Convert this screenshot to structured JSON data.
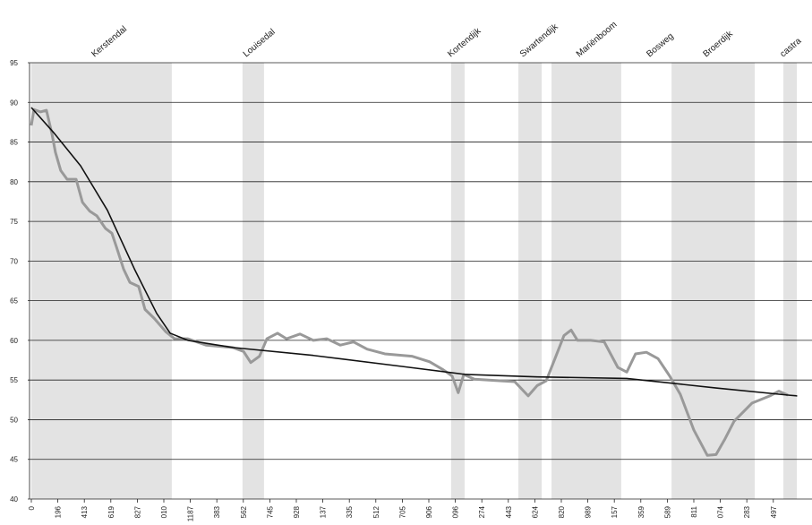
{
  "chart_data": {
    "type": "line",
    "xlim": [
      0,
      29.46
    ],
    "ylim": [
      40,
      95
    ],
    "yticks": [
      40,
      45,
      50,
      55,
      60,
      65,
      70,
      75,
      80,
      85,
      90,
      95
    ],
    "xticks": [
      {
        "value": 0,
        "label": "0"
      },
      {
        "value": 1,
        "label": "196"
      },
      {
        "value": 2,
        "label": "413"
      },
      {
        "value": 3,
        "label": "619"
      },
      {
        "value": 4,
        "label": "827"
      },
      {
        "value": 5,
        "label": "010"
      },
      {
        "value": 6,
        "label": "1187"
      },
      {
        "value": 7,
        "label": "383"
      },
      {
        "value": 8,
        "label": "562"
      },
      {
        "value": 9,
        "label": "745"
      },
      {
        "value": 10,
        "label": "928"
      },
      {
        "value": 11,
        "label": "137"
      },
      {
        "value": 12,
        "label": "335"
      },
      {
        "value": 13,
        "label": "512"
      },
      {
        "value": 14,
        "label": "705"
      },
      {
        "value": 15,
        "label": "906"
      },
      {
        "value": 16,
        "label": "096"
      },
      {
        "value": 17,
        "label": "274"
      },
      {
        "value": 18,
        "label": "443"
      },
      {
        "value": 19,
        "label": "624"
      },
      {
        "value": 20,
        "label": "820"
      },
      {
        "value": 21,
        "label": "989"
      },
      {
        "value": 22,
        "label": "157"
      },
      {
        "value": 23,
        "label": "359"
      },
      {
        "value": 24,
        "label": "589"
      },
      {
        "value": 25,
        "label": "811"
      },
      {
        "value": 26,
        "label": "074"
      },
      {
        "value": 27,
        "label": "283"
      },
      {
        "value": 28,
        "label": "497"
      }
    ],
    "zones": [
      {
        "label": "Kerstendal",
        "start": 0,
        "end": 5.3
      },
      {
        "label": "Louisedal",
        "start": 7.97,
        "end": 8.78
      },
      {
        "label": "Kortendijk",
        "start": 15.84,
        "end": 16.35
      },
      {
        "label": "Swartendijk",
        "start": 18.38,
        "end": 19.26
      },
      {
        "label": "Mariënboom",
        "start": 19.63,
        "end": 22.26
      },
      {
        "label": "Bosweg",
        "at": 23.6
      },
      {
        "label": "Broerdijk",
        "start": 24.16,
        "end": 27.3
      },
      {
        "label": "castra",
        "start": 28.38,
        "end": 28.89
      }
    ],
    "grid": true,
    "series": [
      {
        "color": "#999999",
        "x": [
          0,
          0.1,
          0.34,
          0.57,
          0.78,
          0.91,
          1.11,
          1.35,
          1.69,
          1.93,
          2.2,
          2.47,
          2.8,
          3.04,
          3.21,
          3.48,
          3.72,
          4.05,
          4.29,
          4.63,
          5.07,
          5.41,
          5.91,
          6.59,
          7.6,
          8.01,
          8.28,
          8.61,
          8.89,
          9.29,
          9.63,
          10.14,
          10.64,
          11.15,
          11.66,
          12.16,
          12.67,
          13.34,
          14.36,
          15.03,
          15.54,
          15.88,
          16.11,
          16.32,
          16.72,
          17.74,
          18.24,
          18.75,
          19.09,
          19.43,
          19.76,
          20.1,
          20.37,
          20.61,
          21.11,
          21.62,
          22.13,
          22.47,
          22.8,
          23.21,
          23.65,
          24.09,
          24.49,
          25.0,
          25.51,
          25.84,
          26.18,
          26.52,
          27.2,
          27.87,
          28.21,
          28.55
        ],
        "values": [
          87.1,
          89.1,
          88.8,
          89.0,
          86.0,
          83.7,
          81.4,
          80.3,
          80.3,
          77.4,
          76.3,
          75.7,
          74.1,
          73.5,
          71.8,
          69.0,
          67.3,
          66.8,
          63.9,
          62.8,
          61.1,
          60.2,
          60.2,
          59.4,
          59.1,
          58.6,
          57.2,
          58.0,
          60.2,
          60.9,
          60.2,
          60.8,
          60.0,
          60.2,
          59.4,
          59.8,
          58.9,
          58.3,
          58.0,
          57.3,
          56.3,
          55.5,
          53.4,
          55.7,
          55.1,
          54.9,
          54.8,
          53.0,
          54.3,
          54.9,
          57.7,
          60.6,
          61.3,
          60.0,
          60.0,
          59.8,
          56.6,
          56.0,
          58.3,
          58.5,
          57.7,
          55.5,
          53.2,
          48.7,
          45.5,
          45.6,
          47.6,
          49.8,
          52.1,
          53.0,
          53.6,
          53.1
        ]
      },
      {
        "color": "#111111",
        "x": [
          0,
          0.84,
          1.86,
          2.87,
          3.89,
          4.73,
          5.24,
          5.91,
          7.6,
          10.64,
          14.02,
          16.39,
          19.09,
          22.47,
          24.16,
          25.84,
          28.55,
          28.9
        ],
        "values": [
          89.35,
          86.2,
          82.0,
          76.4,
          69.0,
          63.4,
          60.9,
          60.0,
          59.1,
          58.1,
          56.7,
          55.7,
          55.4,
          55.2,
          54.6,
          54.0,
          53.1,
          53.0
        ]
      }
    ]
  }
}
